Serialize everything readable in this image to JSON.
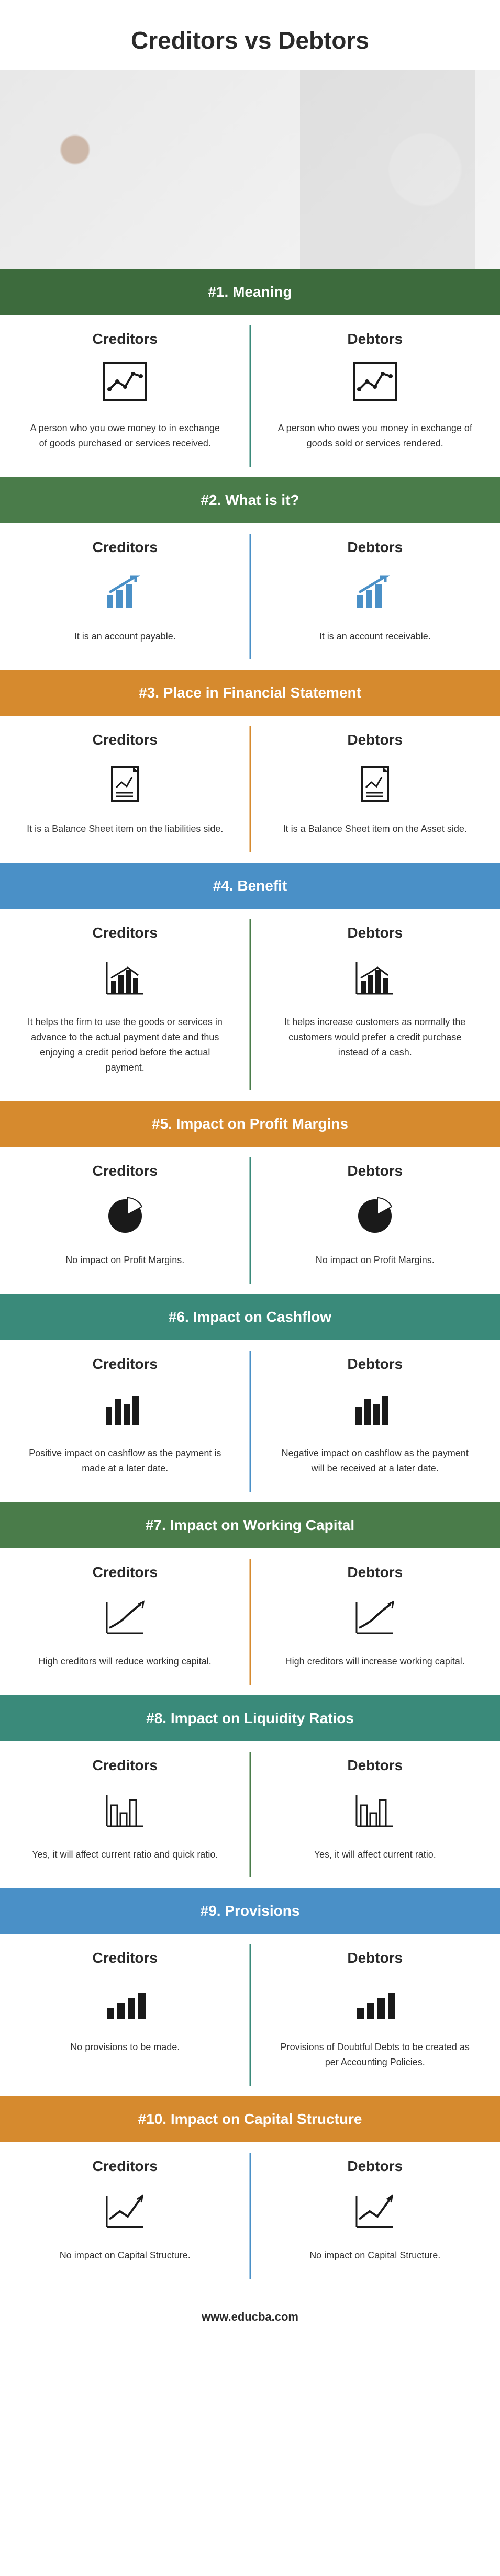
{
  "title": "Creditors vs Debtors",
  "footer": "www.educba.com",
  "columns": {
    "left": "Creditors",
    "right": "Debtors"
  },
  "colors": {
    "green_dark": "#3d6b3d",
    "green": "#4a7c4a",
    "orange": "#d68a2e",
    "blue": "#4a90c7",
    "teal": "#3a8a7a",
    "text": "#2a2a2a",
    "icon_black": "#1a1a1a",
    "icon_blue": "#4a90c7"
  },
  "sections": [
    {
      "num": "#1.",
      "title": "Meaning",
      "banner_color": "green_dark",
      "divider_color": "teal",
      "icon": "line-chart",
      "creditors": "A person who you owe money to in exchange of goods purchased or services received.",
      "debtors": "A person who owes you money in exchange of goods sold or services rendered."
    },
    {
      "num": "#2.",
      "title": "What is it?",
      "banner_color": "green",
      "divider_color": "blue",
      "icon": "bar-arrow",
      "creditors": "It is an account payable.",
      "debtors": "It is an account receivable."
    },
    {
      "num": "#3.",
      "title": "Place in Financial Statement",
      "banner_color": "orange",
      "divider_color": "orange",
      "icon": "document",
      "creditors": "It is a Balance Sheet item on the liabilities side.",
      "debtors": "It is a Balance Sheet item on the Asset side."
    },
    {
      "num": "#4.",
      "title": "Benefit",
      "banner_color": "blue",
      "divider_color": "green",
      "icon": "bar-chart",
      "creditors": "It helps the firm to use the goods or services in advance to the actual payment date and thus enjoying a credit period before the actual payment.",
      "debtors": "It helps increase customers as normally the customers would prefer a credit purchase instead of a cash."
    },
    {
      "num": "#5.",
      "title": "Impact on Profit Margins",
      "banner_color": "orange",
      "divider_color": "teal",
      "icon": "pie",
      "creditors": "No impact on Profit Margins.",
      "debtors": "No impact on Profit Margins."
    },
    {
      "num": "#6.",
      "title": "Impact on Cashflow",
      "banner_color": "teal",
      "divider_color": "blue",
      "icon": "bars",
      "creditors": "Positive impact on cashflow as the payment is made at a later date.",
      "debtors": "Negative impact on cashflow as the payment will be received at a later date."
    },
    {
      "num": "#7.",
      "title": "Impact on Working Capital",
      "banner_color": "green",
      "divider_color": "orange",
      "icon": "trend",
      "creditors": "High creditors will reduce working capital.",
      "debtors": "High creditors will increase working capital."
    },
    {
      "num": "#8.",
      "title": "Impact on Liquidity Ratios",
      "banner_color": "teal",
      "divider_color": "green",
      "icon": "bars-small",
      "creditors": "Yes, it will affect current ratio and quick ratio.",
      "debtors": "Yes, it will affect current ratio."
    },
    {
      "num": "#9.",
      "title": "Provisions",
      "banner_color": "blue",
      "divider_color": "teal",
      "icon": "bars-up",
      "creditors": "No provisions to be made.",
      "debtors": "Provisions of Doubtful Debts to be created as per Accounting Policies."
    },
    {
      "num": "#10.",
      "title": "Impact on Capital Structure",
      "banner_color": "orange",
      "divider_color": "blue",
      "icon": "simple-trend",
      "creditors": "No impact on Capital Structure.",
      "debtors": "No impact on Capital Structure."
    }
  ]
}
